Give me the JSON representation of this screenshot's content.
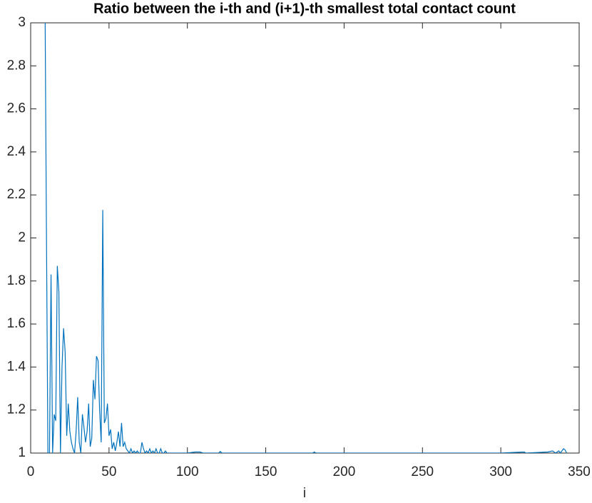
{
  "chart_data": {
    "type": "line",
    "title": "Ratio between the i-th and (i+1)-th smallest total contact count",
    "xlabel": "i",
    "color": "#0072bd",
    "x": [
      9,
      10,
      11,
      12,
      13,
      14,
      15,
      16,
      17,
      18,
      19,
      20,
      21,
      22,
      23,
      24,
      25,
      26,
      27,
      28,
      29,
      30,
      31,
      32,
      33,
      34,
      35,
      36,
      37,
      38,
      39,
      40,
      41,
      42,
      43,
      44,
      45,
      46,
      47,
      48,
      49,
      50,
      51,
      52,
      53,
      54,
      55,
      56,
      57,
      58,
      59,
      60,
      61,
      62,
      63,
      64,
      65,
      66,
      67,
      68,
      69,
      70,
      71,
      72,
      73,
      74,
      75,
      76,
      77,
      78,
      79,
      80,
      81,
      82,
      83,
      84,
      85,
      86,
      87,
      90,
      95,
      100,
      105,
      108,
      110,
      120,
      121,
      122,
      150,
      180,
      181,
      182,
      250,
      300,
      315,
      316,
      330,
      333,
      335,
      337,
      338,
      340,
      341,
      342
    ],
    "values": [
      3.3,
      2.1,
      1.0,
      1.0,
      1.83,
      1.0,
      1.18,
      1.15,
      1.87,
      1.75,
      1.0,
      1.4,
      1.58,
      1.47,
      1.08,
      1.23,
      1.1,
      1.05,
      1.02,
      1.0,
      1.1,
      1.26,
      1.05,
      1.0,
      1.18,
      1.12,
      1.05,
      1.1,
      1.23,
      1.03,
      1.07,
      1.34,
      1.25,
      1.45,
      1.43,
      1.2,
      1.05,
      2.13,
      1.14,
      1.16,
      1.23,
      1.08,
      1.11,
      1.02,
      1.05,
      1.01,
      1.05,
      1.1,
      1.03,
      1.14,
      1.03,
      1.05,
      1.02,
      1.01,
      1.0,
      1.02,
      1.0,
      1.01,
      1.0,
      1.01,
      1.0,
      1.0,
      1.05,
      1.02,
      1.0,
      1.01,
      1.0,
      1.02,
      1.0,
      1.01,
      1.0,
      1.02,
      1.0,
      1.0,
      1.02,
      1.0,
      1.0,
      1.01,
      1.0,
      1.0,
      1.0,
      1.0,
      1.005,
      1.005,
      1.0,
      1.0,
      1.008,
      1.0,
      1.0,
      1.0,
      1.005,
      1.0,
      1.0,
      1.0,
      1.005,
      1.0,
      1.005,
      1.01,
      1.0,
      1.01,
      1.0,
      1.02,
      1.015,
      1.0
    ],
    "xlim": [
      0,
      350
    ],
    "xticks": [
      0,
      50,
      100,
      150,
      200,
      250,
      300,
      350
    ],
    "ylim": [
      1,
      3
    ],
    "yticks": [
      1,
      1.2,
      1.4,
      1.6,
      1.8,
      2,
      2.2,
      2.4,
      2.6,
      2.8,
      3
    ],
    "grid": false
  }
}
